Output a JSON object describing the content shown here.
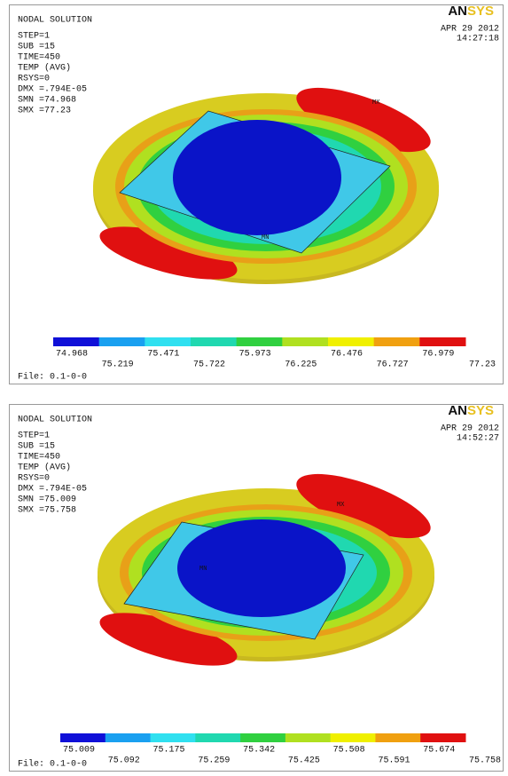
{
  "panels": [
    {
      "title": "NODAL SOLUTION",
      "info": [
        "STEP=1",
        "SUB =15",
        "TIME=450",
        "TEMP     (AVG)",
        "RSYS=0",
        "DMX =.794E-05",
        "SMN =74.968",
        "SMX =77.23"
      ],
      "date": "APR 29 2012",
      "time": "14:27:18",
      "logo": [
        "AN",
        "SYS"
      ],
      "max_label": "MX",
      "min_label": "MN",
      "legend": {
        "labels": [
          "74.968",
          "75.219",
          "75.471",
          "75.722",
          "75.973",
          "76.225",
          "76.476",
          "76.727",
          "76.979",
          "77.23"
        ],
        "colors": [
          "#1010d8",
          "#1aa0f0",
          "#30e0f0",
          "#20d8b0",
          "#30d040",
          "#b0e020",
          "#f0f000",
          "#f0a010",
          "#e01010"
        ]
      },
      "file": "File: 0.1-0-0"
    },
    {
      "title": "NODAL SOLUTION",
      "info": [
        "STEP=1",
        "SUB =15",
        "TIME=450",
        "TEMP     (AVG)",
        "RSYS=0",
        "DMX =.794E-05",
        "SMN =75.009",
        "SMX =75.758"
      ],
      "date": "APR 29 2012",
      "time": "14:52:27",
      "logo": [
        "AN",
        "SYS"
      ],
      "max_label": "MX",
      "min_label": "MN",
      "legend": {
        "labels": [
          "75.009",
          "75.092",
          "75.175",
          "75.259",
          "75.342",
          "75.425",
          "75.508",
          "75.591",
          "75.674",
          "75.758"
        ],
        "colors": [
          "#1010d8",
          "#1aa0f0",
          "#30e0f0",
          "#20d8b0",
          "#30d040",
          "#b0e020",
          "#f0f000",
          "#f0a010",
          "#e01010"
        ]
      },
      "file": "File: 0.1-0-0"
    }
  ]
}
